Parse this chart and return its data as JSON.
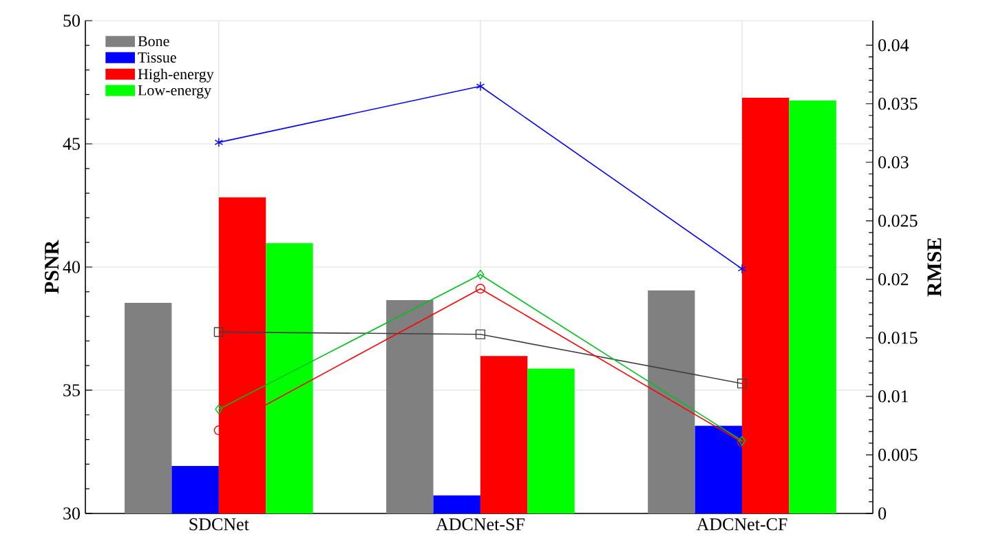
{
  "chart_data": {
    "type": "bar",
    "ylabel": "PSNR",
    "y2label": "RMSE",
    "categories": [
      "SDCNet",
      "ADCNet-SF",
      "ADCNet-CF"
    ],
    "ylim": [
      30,
      50
    ],
    "yticks": [
      30,
      35,
      40,
      45,
      50
    ],
    "y2lim": [
      0,
      0.0421
    ],
    "y2ticks": [
      0,
      0.005,
      0.01,
      0.015,
      0.02,
      0.025,
      0.03,
      0.035,
      0.04
    ],
    "grid": true,
    "legend": "top left",
    "series": [
      {
        "name": "Bone",
        "color": "#808080",
        "values": [
          38.55,
          38.66,
          39.05
        ]
      },
      {
        "name": "Tissue",
        "color": "#0000ff",
        "values": [
          31.93,
          30.73,
          33.56
        ]
      },
      {
        "name": "High-energy",
        "color": "#ff0000",
        "values": [
          42.83,
          36.39,
          46.87
        ]
      },
      {
        "name": "Low-energy",
        "color": "#00ff00",
        "values": [
          40.97,
          35.88,
          46.76
        ]
      },
      {
        "type": "line",
        "axis": "y2",
        "color": "#404040",
        "marker": "square",
        "values": [
          0.0155,
          0.0153,
          0.0111
        ]
      },
      {
        "type": "line",
        "axis": "y2",
        "color": "#0000ff",
        "marker": "cross",
        "values": [
          0.0317,
          0.0365,
          0.0209
        ]
      },
      {
        "type": "line",
        "axis": "y2",
        "color": "#ff0000",
        "marker": "circle",
        "values": [
          0.0071,
          0.0192,
          0.0061
        ]
      },
      {
        "type": "line",
        "axis": "y2",
        "color": "#00c020",
        "marker": "diamond",
        "values": [
          0.0089,
          0.0204,
          0.0062
        ]
      }
    ]
  }
}
